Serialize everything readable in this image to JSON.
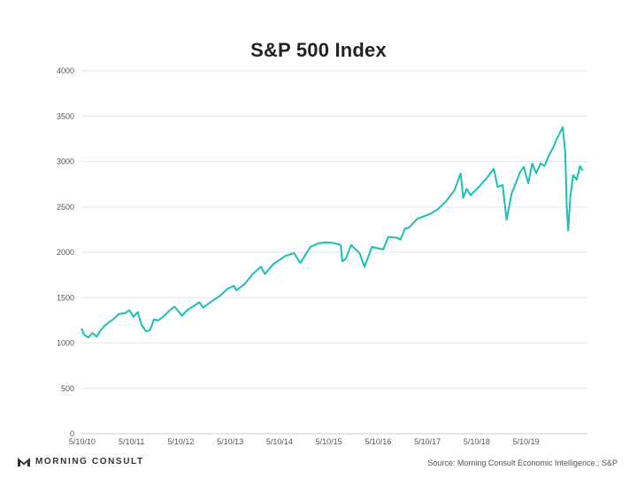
{
  "title": "S&P 500 Index",
  "chart_data": {
    "type": "line",
    "title": "S&P 500 Index",
    "xlabel": "",
    "ylabel": "",
    "ylim": [
      0,
      4000
    ],
    "yticks": [
      0,
      500,
      1000,
      1500,
      2000,
      2500,
      3000,
      3500,
      4000
    ],
    "xticks": [
      "5/10/10",
      "5/10/11",
      "5/10/12",
      "5/10/13",
      "5/10/14",
      "5/10/15",
      "5/10/16",
      "5/10/17",
      "5/10/18",
      "5/10/19"
    ],
    "xlim": [
      2010.36,
      2020.62
    ],
    "grid": "horizontal",
    "series_color": "#1bbfb6",
    "series": [
      {
        "values": [
          {
            "x": 2010.36,
            "y": 1160
          },
          {
            "x": 2010.42,
            "y": 1090
          },
          {
            "x": 2010.5,
            "y": 1060
          },
          {
            "x": 2010.58,
            "y": 1110
          },
          {
            "x": 2010.67,
            "y": 1070
          },
          {
            "x": 2010.75,
            "y": 1140
          },
          {
            "x": 2010.83,
            "y": 1190
          },
          {
            "x": 2010.92,
            "y": 1230
          },
          {
            "x": 2011.0,
            "y": 1260
          },
          {
            "x": 2011.12,
            "y": 1320
          },
          {
            "x": 2011.25,
            "y": 1330
          },
          {
            "x": 2011.33,
            "y": 1360
          },
          {
            "x": 2011.42,
            "y": 1290
          },
          {
            "x": 2011.5,
            "y": 1340
          },
          {
            "x": 2011.58,
            "y": 1200
          },
          {
            "x": 2011.67,
            "y": 1130
          },
          {
            "x": 2011.75,
            "y": 1140
          },
          {
            "x": 2011.83,
            "y": 1260
          },
          {
            "x": 2011.92,
            "y": 1250
          },
          {
            "x": 2012.0,
            "y": 1280
          },
          {
            "x": 2012.17,
            "y": 1370
          },
          {
            "x": 2012.25,
            "y": 1400
          },
          {
            "x": 2012.4,
            "y": 1300
          },
          {
            "x": 2012.5,
            "y": 1360
          },
          {
            "x": 2012.67,
            "y": 1420
          },
          {
            "x": 2012.75,
            "y": 1450
          },
          {
            "x": 2012.83,
            "y": 1390
          },
          {
            "x": 2013.0,
            "y": 1460
          },
          {
            "x": 2013.17,
            "y": 1520
          },
          {
            "x": 2013.33,
            "y": 1600
          },
          {
            "x": 2013.45,
            "y": 1630
          },
          {
            "x": 2013.5,
            "y": 1580
          },
          {
            "x": 2013.67,
            "y": 1650
          },
          {
            "x": 2013.83,
            "y": 1760
          },
          {
            "x": 2014.0,
            "y": 1840
          },
          {
            "x": 2014.08,
            "y": 1760
          },
          {
            "x": 2014.25,
            "y": 1870
          },
          {
            "x": 2014.5,
            "y": 1960
          },
          {
            "x": 2014.67,
            "y": 1990
          },
          {
            "x": 2014.8,
            "y": 1880
          },
          {
            "x": 2015.0,
            "y": 2060
          },
          {
            "x": 2015.17,
            "y": 2100
          },
          {
            "x": 2015.33,
            "y": 2110
          },
          {
            "x": 2015.5,
            "y": 2100
          },
          {
            "x": 2015.62,
            "y": 2080
          },
          {
            "x": 2015.65,
            "y": 1900
          },
          {
            "x": 2015.72,
            "y": 1930
          },
          {
            "x": 2015.83,
            "y": 2080
          },
          {
            "x": 2016.0,
            "y": 1990
          },
          {
            "x": 2016.1,
            "y": 1840
          },
          {
            "x": 2016.25,
            "y": 2060
          },
          {
            "x": 2016.48,
            "y": 2030
          },
          {
            "x": 2016.58,
            "y": 2170
          },
          {
            "x": 2016.75,
            "y": 2160
          },
          {
            "x": 2016.83,
            "y": 2140
          },
          {
            "x": 2016.92,
            "y": 2260
          },
          {
            "x": 2017.0,
            "y": 2270
          },
          {
            "x": 2017.17,
            "y": 2370
          },
          {
            "x": 2017.42,
            "y": 2420
          },
          {
            "x": 2017.58,
            "y": 2470
          },
          {
            "x": 2017.75,
            "y": 2560
          },
          {
            "x": 2017.92,
            "y": 2680
          },
          {
            "x": 2018.05,
            "y": 2870
          },
          {
            "x": 2018.1,
            "y": 2600
          },
          {
            "x": 2018.17,
            "y": 2700
          },
          {
            "x": 2018.25,
            "y": 2630
          },
          {
            "x": 2018.42,
            "y": 2720
          },
          {
            "x": 2018.58,
            "y": 2820
          },
          {
            "x": 2018.72,
            "y": 2920
          },
          {
            "x": 2018.8,
            "y": 2720
          },
          {
            "x": 2018.9,
            "y": 2740
          },
          {
            "x": 2018.98,
            "y": 2360
          },
          {
            "x": 2019.08,
            "y": 2640
          },
          {
            "x": 2019.25,
            "y": 2880
          },
          {
            "x": 2019.33,
            "y": 2940
          },
          {
            "x": 2019.42,
            "y": 2760
          },
          {
            "x": 2019.5,
            "y": 2980
          },
          {
            "x": 2019.58,
            "y": 2870
          },
          {
            "x": 2019.67,
            "y": 2980
          },
          {
            "x": 2019.75,
            "y": 2950
          },
          {
            "x": 2019.83,
            "y": 3060
          },
          {
            "x": 2019.92,
            "y": 3150
          },
          {
            "x": 2020.0,
            "y": 3250
          },
          {
            "x": 2020.12,
            "y": 3380
          },
          {
            "x": 2020.17,
            "y": 3100
          },
          {
            "x": 2020.2,
            "y": 2500
          },
          {
            "x": 2020.23,
            "y": 2240
          },
          {
            "x": 2020.27,
            "y": 2600
          },
          {
            "x": 2020.33,
            "y": 2850
          },
          {
            "x": 2020.4,
            "y": 2800
          },
          {
            "x": 2020.47,
            "y": 2950
          },
          {
            "x": 2020.52,
            "y": 2900
          }
        ]
      }
    ]
  },
  "footer": {
    "brand": "MORNING CONSULT",
    "source": "Source: Morning Consult Economic Intelligence.; S&P"
  }
}
